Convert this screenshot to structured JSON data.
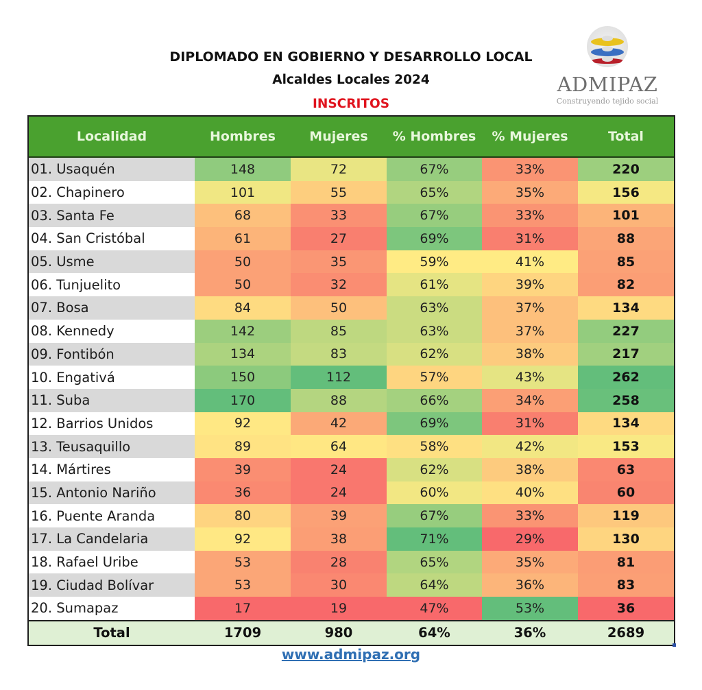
{
  "header": {
    "title": "DIPLOMADO EN GOBIERNO Y DESARROLLO LOCAL",
    "subtitle": "Alcaldes Locales 2024",
    "section": "INSCRITOS"
  },
  "logo": {
    "icon": "globe-stripes-icon",
    "brand": "ADMIPAZ",
    "tagline": "Construyendo tejido social"
  },
  "colors": {
    "header_green": "#4aa12f",
    "title_red": "#e0141e",
    "total_row": "#dff0d4",
    "link_blue": "#2f6fb3",
    "scale_low": "#f8696b",
    "scale_mid": "#ffeb84",
    "scale_high": "#63be7b"
  },
  "table": {
    "columns": [
      "Localidad",
      "Hombres",
      "Mujeres",
      "% Hombres",
      "% Mujeres",
      "Total"
    ],
    "rows": [
      {
        "localidad": "01. Usaquén",
        "hombres": "148",
        "mujeres": "72",
        "pct_hombres": "67%",
        "pct_mujeres": "33%",
        "total": "220"
      },
      {
        "localidad": "02. Chapinero",
        "hombres": "101",
        "mujeres": "55",
        "pct_hombres": "65%",
        "pct_mujeres": "35%",
        "total": "156"
      },
      {
        "localidad": "03. Santa Fe",
        "hombres": "68",
        "mujeres": "33",
        "pct_hombres": "67%",
        "pct_mujeres": "33%",
        "total": "101"
      },
      {
        "localidad": "04. San Cristóbal",
        "hombres": "61",
        "mujeres": "27",
        "pct_hombres": "69%",
        "pct_mujeres": "31%",
        "total": "88"
      },
      {
        "localidad": "05. Usme",
        "hombres": "50",
        "mujeres": "35",
        "pct_hombres": "59%",
        "pct_mujeres": "41%",
        "total": "85"
      },
      {
        "localidad": "06. Tunjuelito",
        "hombres": "50",
        "mujeres": "32",
        "pct_hombres": "61%",
        "pct_mujeres": "39%",
        "total": "82"
      },
      {
        "localidad": "07. Bosa",
        "hombres": "84",
        "mujeres": "50",
        "pct_hombres": "63%",
        "pct_mujeres": "37%",
        "total": "134"
      },
      {
        "localidad": "08. Kennedy",
        "hombres": "142",
        "mujeres": "85",
        "pct_hombres": "63%",
        "pct_mujeres": "37%",
        "total": "227"
      },
      {
        "localidad": "09. Fontibón",
        "hombres": "134",
        "mujeres": "83",
        "pct_hombres": "62%",
        "pct_mujeres": "38%",
        "total": "217"
      },
      {
        "localidad": "10. Engativá",
        "hombres": "150",
        "mujeres": "112",
        "pct_hombres": "57%",
        "pct_mujeres": "43%",
        "total": "262"
      },
      {
        "localidad": "11. Suba",
        "hombres": "170",
        "mujeres": "88",
        "pct_hombres": "66%",
        "pct_mujeres": "34%",
        "total": "258"
      },
      {
        "localidad": "12. Barrios Unidos",
        "hombres": "92",
        "mujeres": "42",
        "pct_hombres": "69%",
        "pct_mujeres": "31%",
        "total": "134"
      },
      {
        "localidad": "13. Teusaquillo",
        "hombres": "89",
        "mujeres": "64",
        "pct_hombres": "58%",
        "pct_mujeres": "42%",
        "total": "153"
      },
      {
        "localidad": "14. Mártires",
        "hombres": "39",
        "mujeres": "24",
        "pct_hombres": "62%",
        "pct_mujeres": "38%",
        "total": "63"
      },
      {
        "localidad": "15. Antonio Nariño",
        "hombres": "36",
        "mujeres": "24",
        "pct_hombres": "60%",
        "pct_mujeres": "40%",
        "total": "60"
      },
      {
        "localidad": "16. Puente Aranda",
        "hombres": "80",
        "mujeres": "39",
        "pct_hombres": "67%",
        "pct_mujeres": "33%",
        "total": "119"
      },
      {
        "localidad": "17. La Candelaria",
        "hombres": "92",
        "mujeres": "38",
        "pct_hombres": "71%",
        "pct_mujeres": "29%",
        "total": "130"
      },
      {
        "localidad": "18. Rafael Uribe",
        "hombres": "53",
        "mujeres": "28",
        "pct_hombres": "65%",
        "pct_mujeres": "35%",
        "total": "81"
      },
      {
        "localidad": "19. Ciudad Bolívar",
        "hombres": "53",
        "mujeres": "30",
        "pct_hombres": "64%",
        "pct_mujeres": "36%",
        "total": "83"
      },
      {
        "localidad": "20. Sumapaz",
        "hombres": "17",
        "mujeres": "19",
        "pct_hombres": "47%",
        "pct_mujeres": "53%",
        "total": "36"
      }
    ],
    "totals": {
      "label": "Total",
      "hombres": "1709",
      "mujeres": "980",
      "pct_hombres": "64%",
      "pct_mujeres": "36%",
      "total": "2689"
    }
  },
  "footer": {
    "link": "www.admipaz.org"
  }
}
